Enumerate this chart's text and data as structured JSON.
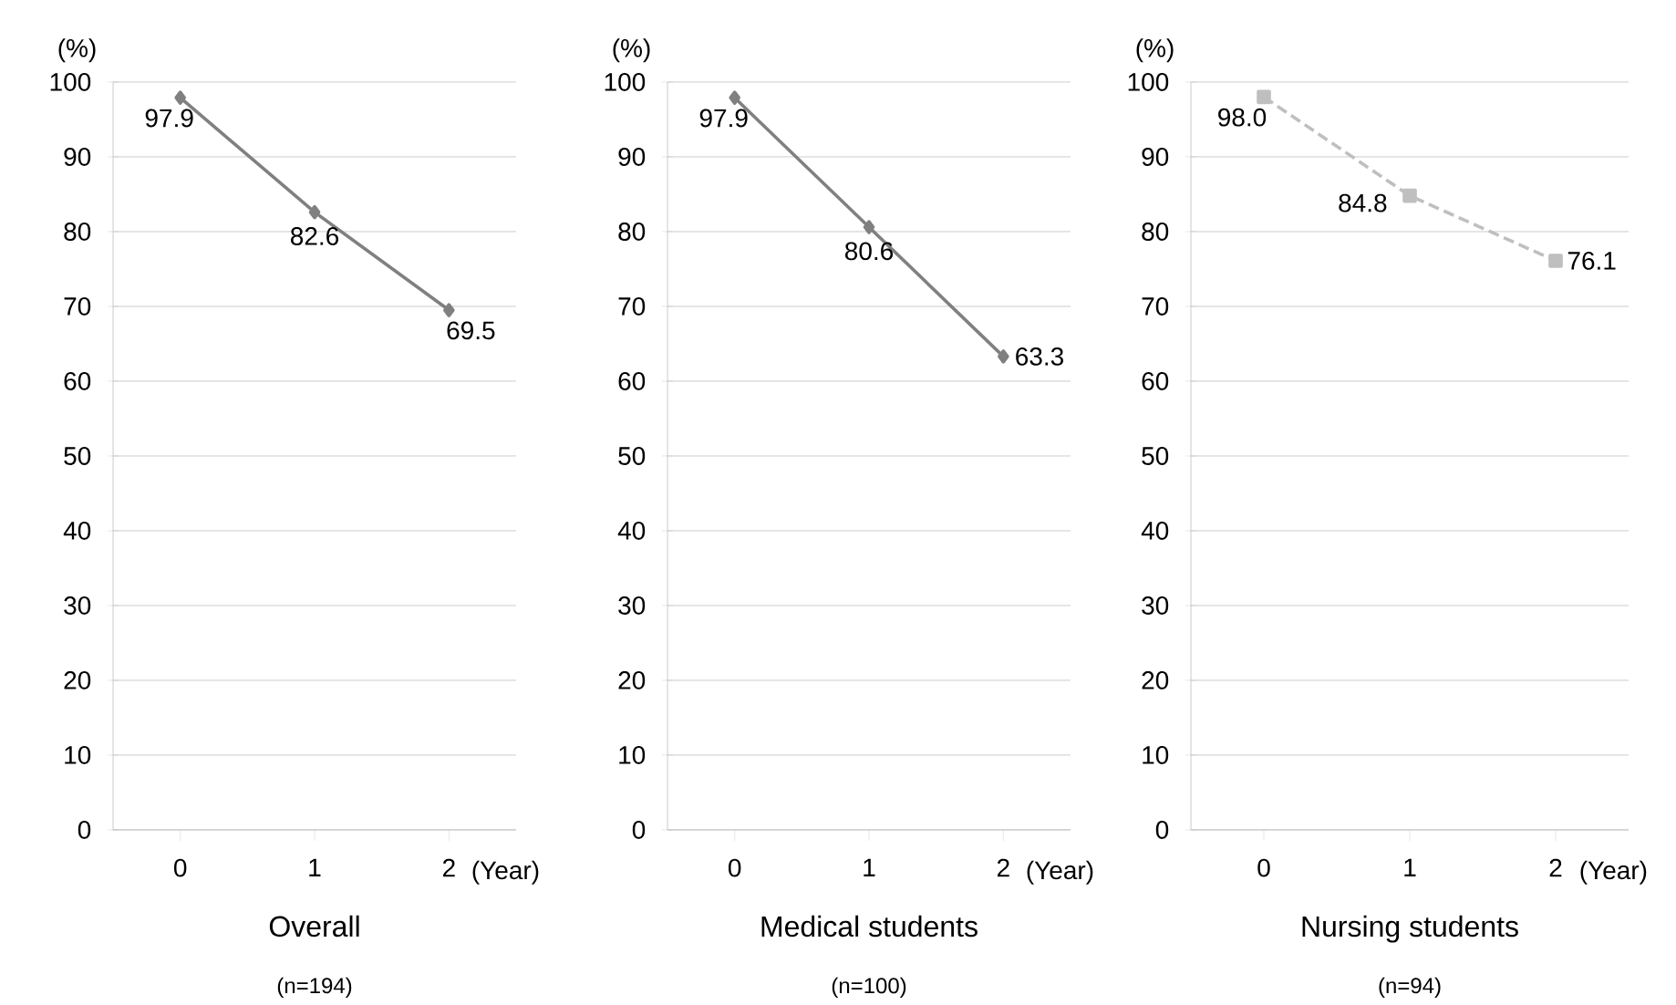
{
  "chart_data": [
    {
      "type": "line",
      "title": "Overall",
      "subtitle": "(n=194)",
      "ylabel": "(%)",
      "xlabel": "(Year)",
      "categories": [
        "0",
        "1",
        "2"
      ],
      "series": [
        {
          "color": "#808080",
          "values": [
            97.9,
            82.6,
            69.5
          ],
          "value_labels": [
            "97.9",
            "82.6",
            "69.5"
          ]
        }
      ],
      "ylim": [
        0,
        100
      ],
      "yticks": [
        0,
        10,
        20,
        30,
        40,
        50,
        60,
        70,
        80,
        90,
        100
      ],
      "grid": "y",
      "marker": "diamond",
      "line_style": "solid"
    },
    {
      "type": "line",
      "title": "Medical students",
      "subtitle": "(n=100)",
      "ylabel": "(%)",
      "xlabel": "(Year)",
      "categories": [
        "0",
        "1",
        "2"
      ],
      "series": [
        {
          "color": "#808080",
          "values": [
            97.9,
            80.6,
            63.3
          ],
          "value_labels": [
            "97.9",
            "80.6",
            "63.3"
          ]
        }
      ],
      "ylim": [
        0,
        100
      ],
      "yticks": [
        0,
        10,
        20,
        30,
        40,
        50,
        60,
        70,
        80,
        90,
        100
      ],
      "grid": "y",
      "marker": "diamond",
      "line_style": "solid"
    },
    {
      "type": "line",
      "title": "Nursing students",
      "subtitle": "(n=94)",
      "ylabel": "(%)",
      "xlabel": "(Year)",
      "categories": [
        "0",
        "1",
        "2"
      ],
      "series": [
        {
          "color": "#bfbfbf",
          "values": [
            98.0,
            84.8,
            76.1
          ],
          "value_labels": [
            "98.0",
            "84.8",
            "76.1"
          ]
        }
      ],
      "ylim": [
        0,
        100
      ],
      "yticks": [
        0,
        10,
        20,
        30,
        40,
        50,
        60,
        70,
        80,
        90,
        100
      ],
      "grid": "y",
      "marker": "square",
      "line_style": "dashed"
    }
  ]
}
